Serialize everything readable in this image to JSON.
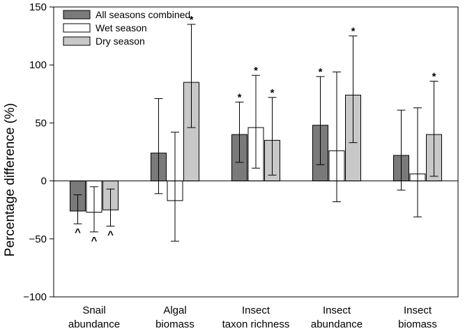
{
  "chart_data": {
    "type": "bar",
    "ylabel": "Percentage difference (%)",
    "xlabel": "",
    "ylim": [
      -100,
      150
    ],
    "yticks": [
      -100,
      -50,
      0,
      50,
      100,
      150
    ],
    "categories": [
      [
        "Snail",
        "abundance"
      ],
      [
        "Algal",
        "biomass"
      ],
      [
        "Insect",
        "taxon richness"
      ],
      [
        "Insect",
        "abundance"
      ],
      [
        "Insect",
        "biomass"
      ]
    ],
    "legend": {
      "position": "top-left"
    },
    "series": [
      {
        "name": "All seasons combined",
        "color": "#7a7a7a",
        "values": [
          -26,
          24,
          40,
          48,
          22
        ],
        "err_low": [
          -37,
          -11,
          16,
          14,
          -8
        ],
        "err_high": [
          -12,
          71,
          68,
          90,
          61
        ],
        "markers": [
          "^",
          "",
          "*",
          "*",
          ""
        ]
      },
      {
        "name": "Wet season",
        "color": "#ffffff",
        "values": [
          -27,
          -17,
          46,
          26,
          6
        ],
        "err_low": [
          -44,
          -52,
          11,
          -18,
          -31
        ],
        "err_high": [
          -5,
          42,
          91,
          94,
          63
        ],
        "markers": [
          "^",
          "",
          "*",
          "",
          ""
        ]
      },
      {
        "name": "Dry season",
        "color": "#c8c8c8",
        "values": [
          -25,
          85,
          35,
          74,
          40
        ],
        "err_low": [
          -39,
          46,
          5,
          33,
          4
        ],
        "err_high": [
          -7,
          135,
          72,
          125,
          86
        ],
        "markers": [
          "^",
          "*",
          "*",
          "*",
          "*"
        ]
      }
    ]
  }
}
